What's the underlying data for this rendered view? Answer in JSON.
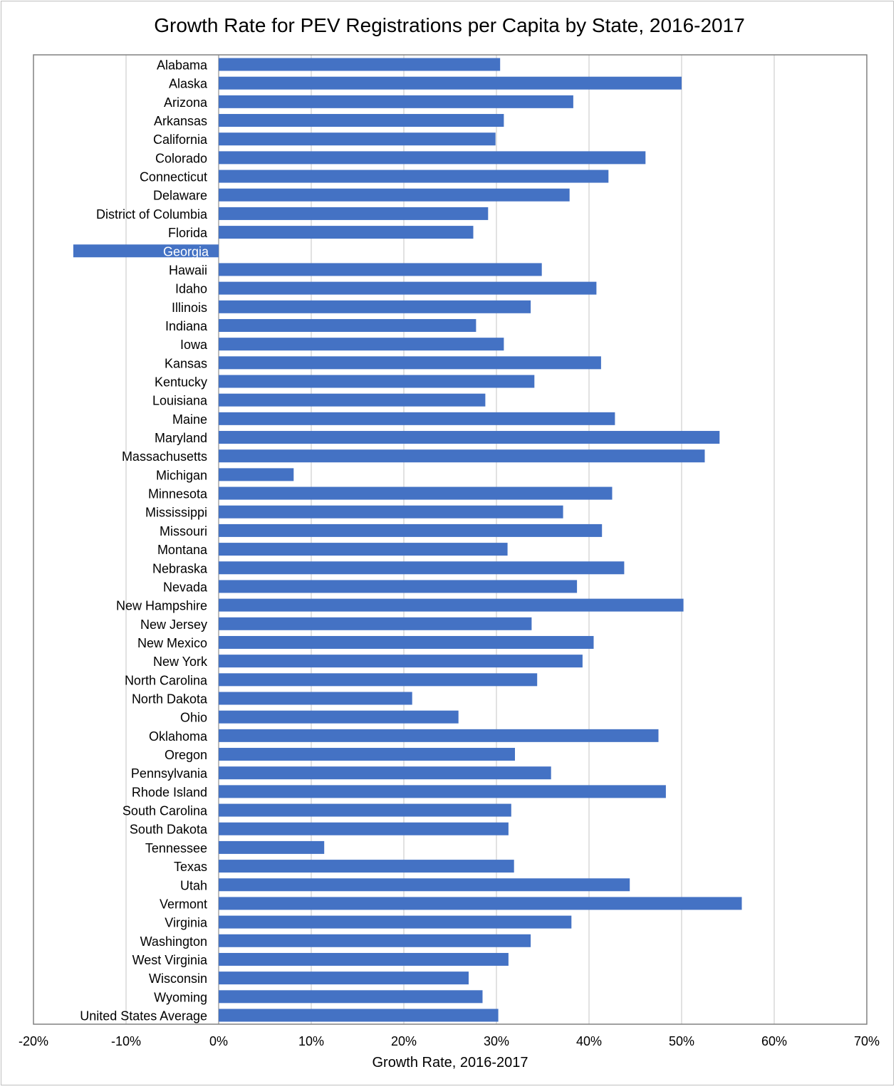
{
  "chart_data": {
    "type": "bar",
    "orientation": "horizontal",
    "title": "Growth Rate for PEV Registrations per Capita by State, 2016-2017",
    "xlabel": "Growth Rate, 2016-2017",
    "ylabel": "",
    "xlim": [
      -0.2,
      0.7
    ],
    "x_ticks": [
      -0.2,
      -0.1,
      0,
      0.1,
      0.2,
      0.3,
      0.4,
      0.5,
      0.6,
      0.7
    ],
    "x_tick_labels": [
      "-20%",
      "-10%",
      "0%",
      "10%",
      "20%",
      "30%",
      "40%",
      "50%",
      "60%",
      "70%"
    ],
    "grid": true,
    "bar_color": "#4472c4",
    "categories": [
      "Alabama",
      "Alaska",
      "Arizona",
      "Arkansas",
      "California",
      "Colorado",
      "Connecticut",
      "Delaware",
      "District of Columbia",
      "Florida",
      "Georgia",
      "Hawaii",
      "Idaho",
      "Illinois",
      "Indiana",
      "Iowa",
      "Kansas",
      "Kentucky",
      "Louisiana",
      "Maine",
      "Maryland",
      "Massachusetts",
      "Michigan",
      "Minnesota",
      "Mississippi",
      "Missouri",
      "Montana",
      "Nebraska",
      "Nevada",
      "New Hampshire",
      "New Jersey",
      "New Mexico",
      "New York",
      "North Carolina",
      "North Dakota",
      "Ohio",
      "Oklahoma",
      "Oregon",
      "Pennsylvania",
      "Rhode Island",
      "South Carolina",
      "South Dakota",
      "Tennessee",
      "Texas",
      "Utah",
      "Vermont",
      "Virginia",
      "Washington",
      "West Virginia",
      "Wisconsin",
      "Wyoming",
      "United States Average"
    ],
    "values": [
      0.304,
      0.5,
      0.383,
      0.308,
      0.299,
      0.461,
      0.421,
      0.379,
      0.291,
      0.275,
      -0.157,
      0.349,
      0.408,
      0.337,
      0.278,
      0.308,
      0.413,
      0.341,
      0.288,
      0.428,
      0.541,
      0.525,
      0.081,
      0.425,
      0.372,
      0.414,
      0.312,
      0.438,
      0.387,
      0.502,
      0.338,
      0.405,
      0.393,
      0.344,
      0.209,
      0.259,
      0.475,
      0.32,
      0.359,
      0.483,
      0.316,
      0.313,
      0.114,
      0.319,
      0.444,
      0.565,
      0.381,
      0.337,
      0.313,
      0.27,
      0.285,
      0.302
    ]
  }
}
